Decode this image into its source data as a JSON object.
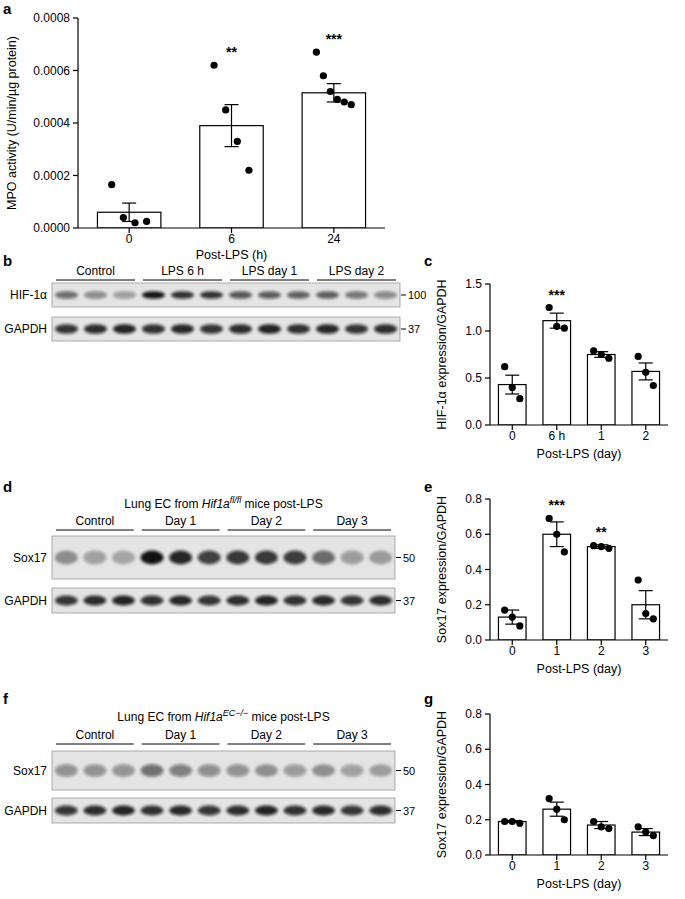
{
  "panel_labels": [
    "a",
    "b",
    "c",
    "d",
    "e",
    "f",
    "g"
  ],
  "chart_data": [
    {
      "type": "bar",
      "y_label": "MPO activity (U/min/µg protein)",
      "x_label": "Post-LPS (h)",
      "categories": [
        "0",
        "6",
        "24"
      ],
      "values": [
        6e-05,
        0.00039,
        0.000515
      ],
      "errors": [
        3.5e-05,
        8e-05,
        3.5e-05
      ],
      "points": [
        [
          0.000165,
          4e-05,
          2e-05,
          2.5e-05
        ],
        [
          0.00062,
          0.00045,
          0.00033,
          0.00022
        ],
        [
          0.00067,
          0.00058,
          0.00052,
          0.00049,
          0.00048,
          0.00047
        ]
      ],
      "annotations": [
        null,
        "**",
        "***"
      ],
      "color": "#ffffff",
      "ylim": [
        0,
        0.0008
      ],
      "yticks": [
        {
          "value": 0,
          "label": "0.0000"
        },
        {
          "value": 0.0002,
          "label": "0.0002"
        },
        {
          "value": 0.0004,
          "label": "0.0004"
        },
        {
          "value": 0.0006,
          "label": "0.0006"
        },
        {
          "value": 0.0008,
          "label": "0.0008"
        }
      ]
    },
    {
      "type": "bar",
      "y_label": "HIF-1α expression/GAPDH",
      "x_label": "Post-LPS (day)",
      "categories": [
        "0",
        "6 h",
        "1",
        "2"
      ],
      "values": [
        0.43,
        1.11,
        0.75,
        0.57
      ],
      "errors": [
        0.1,
        0.08,
        0.03,
        0.09
      ],
      "points": [
        [
          0.62,
          0.4,
          0.28
        ],
        [
          1.25,
          1.05,
          1.03
        ],
        [
          0.79,
          0.75,
          0.71
        ],
        [
          0.73,
          0.56,
          0.42
        ]
      ],
      "annotations": [
        null,
        "***",
        null,
        null
      ],
      "color": "#ffffff",
      "ylim": [
        0,
        1.5
      ],
      "yticks": [
        {
          "value": 0,
          "label": "0.0"
        },
        0.5,
        {
          "value": 1,
          "label": "1.0"
        },
        1.5
      ]
    },
    {
      "type": "bar",
      "y_label": "Sox17 expression/GAPDH",
      "x_label": "Post-LPS (day)",
      "categories": [
        "0",
        "1",
        "2",
        "3"
      ],
      "values": [
        0.13,
        0.6,
        0.53,
        0.2
      ],
      "errors": [
        0.04,
        0.07,
        0.01,
        0.08
      ],
      "points": [
        [
          0.17,
          0.13,
          0.08
        ],
        [
          0.69,
          0.6,
          0.5
        ],
        [
          0.535,
          0.53,
          0.52
        ],
        [
          0.34,
          0.15,
          0.12
        ]
      ],
      "annotations": [
        null,
        "***",
        "**",
        null
      ],
      "color": "#ffffff",
      "ylim": [
        0,
        0.8
      ],
      "yticks": [
        {
          "value": 0,
          "label": "0.0"
        },
        0.2,
        0.4,
        0.6,
        0.8
      ]
    },
    {
      "type": "bar",
      "y_label": "Sox17 expression/GAPDH",
      "x_label": "Post-LPS (day)",
      "categories": [
        "0",
        "1",
        "2",
        "3"
      ],
      "values": [
        0.19,
        0.26,
        0.17,
        0.13
      ],
      "errors": [
        0.005,
        0.04,
        0.02,
        0.02
      ],
      "points": [
        [
          0.19,
          0.19,
          0.18
        ],
        [
          0.32,
          0.26,
          0.2
        ],
        [
          0.19,
          0.16,
          0.15
        ],
        [
          0.16,
          0.13,
          0.11
        ]
      ],
      "annotations": [
        null,
        null,
        null,
        null
      ],
      "color": "#ffffff",
      "ylim": [
        0,
        0.8
      ],
      "yticks": [
        {
          "value": 0,
          "label": "0.0"
        },
        0.2,
        0.4,
        0.6,
        0.8
      ]
    }
  ],
  "blots": [
    {
      "groups": [
        "Control",
        "LPS 6 h",
        "LPS day 1",
        "LPS day 2"
      ],
      "rows": [
        {
          "label": "HIF-1α",
          "marker": 100
        },
        {
          "label": "GAPDH",
          "marker": 37
        }
      ]
    },
    {
      "title": [
        {
          "t": "Lung EC from "
        },
        {
          "t": "Hif1a",
          "italic": true
        },
        {
          "t": "fl/fl",
          "italic": true,
          "sup": true
        },
        {
          "t": " mice post-LPS"
        }
      ],
      "groups": [
        "Control",
        "Day 1",
        "Day 2",
        "Day 3"
      ],
      "rows": [
        {
          "label": "Sox17",
          "marker": 50
        },
        {
          "label": "GAPDH",
          "marker": 37
        }
      ]
    },
    {
      "title": [
        {
          "t": "Lung EC from "
        },
        {
          "t": "Hif1a",
          "italic": true
        },
        {
          "t": "EC−/−",
          "italic": true,
          "sup": true
        },
        {
          "t": " mice post-LPS"
        }
      ],
      "groups": [
        "Control",
        "Day 1",
        "Day 2",
        "Day 3"
      ],
      "rows": [
        {
          "label": "Sox17",
          "marker": 50
        },
        {
          "label": "GAPDH",
          "marker": 37
        }
      ]
    }
  ]
}
